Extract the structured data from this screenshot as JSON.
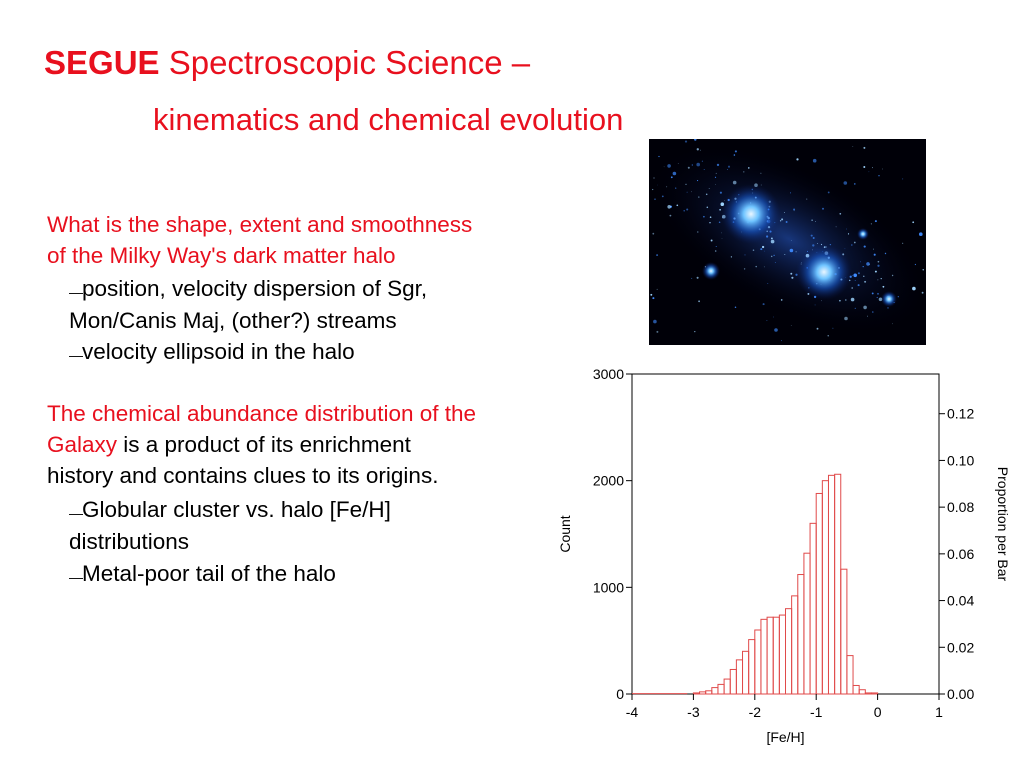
{
  "title": {
    "bold": "SEGUE",
    "rest": " Spectroscopic Science –",
    "line2": "kinematics and chemical evolution"
  },
  "section1": {
    "q_line1": "What is the shape, extent and smoothness",
    "q_line2": "of the Milky Way's dark matter halo",
    "b1_line1": "position, velocity dispersion of Sgr,",
    "b1_line2": "Mon/Canis Maj, (other?)  streams",
    "b2": "velocity ellipsoid in the halo"
  },
  "section2": {
    "line1": "The chemical abundance distribution of the",
    "line2_red": "Galaxy",
    "line2_rest": " is a product of its enrichment",
    "line3": "history and contains clues to its origins.",
    "b1_line1": "Globular cluster vs. halo [Fe/H]",
    "b1_line2": "distributions",
    "b2": "Metal-poor tail of the halo"
  },
  "bullet_dash": "—",
  "image": {
    "subject": "simulated dark matter halo (blue star field)"
  },
  "chart_data": {
    "type": "bar",
    "xlabel": "[Fe/H]",
    "ylabel": "Count",
    "y2label": "Proportion per Bar",
    "xlim": [
      -4,
      1
    ],
    "ylim": [
      0,
      3000
    ],
    "y2lim": [
      0,
      0.137
    ],
    "xticks": [
      "-4",
      "-3",
      "-2",
      "-1",
      "0",
      "1"
    ],
    "yticks": [
      "0",
      "1000",
      "2000",
      "3000"
    ],
    "y2ticks": [
      "0.00",
      "0.02",
      "0.04",
      "0.06",
      "0.08",
      "0.10",
      "0.12"
    ],
    "bar_color": "#e04a4a",
    "bin_width": 0.1,
    "bin_starts": [
      -3.0,
      -2.9,
      -2.8,
      -2.7,
      -2.6,
      -2.5,
      -2.4,
      -2.3,
      -2.2,
      -2.1,
      -2.0,
      -1.9,
      -1.8,
      -1.7,
      -1.6,
      -1.5,
      -1.4,
      -1.3,
      -1.2,
      -1.1,
      -1.0,
      -0.9,
      -0.8,
      -0.7,
      -0.6,
      -0.5,
      -0.4,
      -0.3,
      -0.2,
      -0.1
    ],
    "counts": [
      10,
      20,
      30,
      60,
      90,
      140,
      230,
      320,
      400,
      510,
      600,
      700,
      720,
      720,
      740,
      800,
      920,
      1120,
      1320,
      1600,
      1880,
      2000,
      2050,
      2060,
      1170,
      360,
      80,
      40,
      10,
      10
    ],
    "low_tail": [
      [
        -4.0,
        -3.1,
        3
      ]
    ]
  },
  "colors": {
    "accent_red": "#e8101e"
  }
}
